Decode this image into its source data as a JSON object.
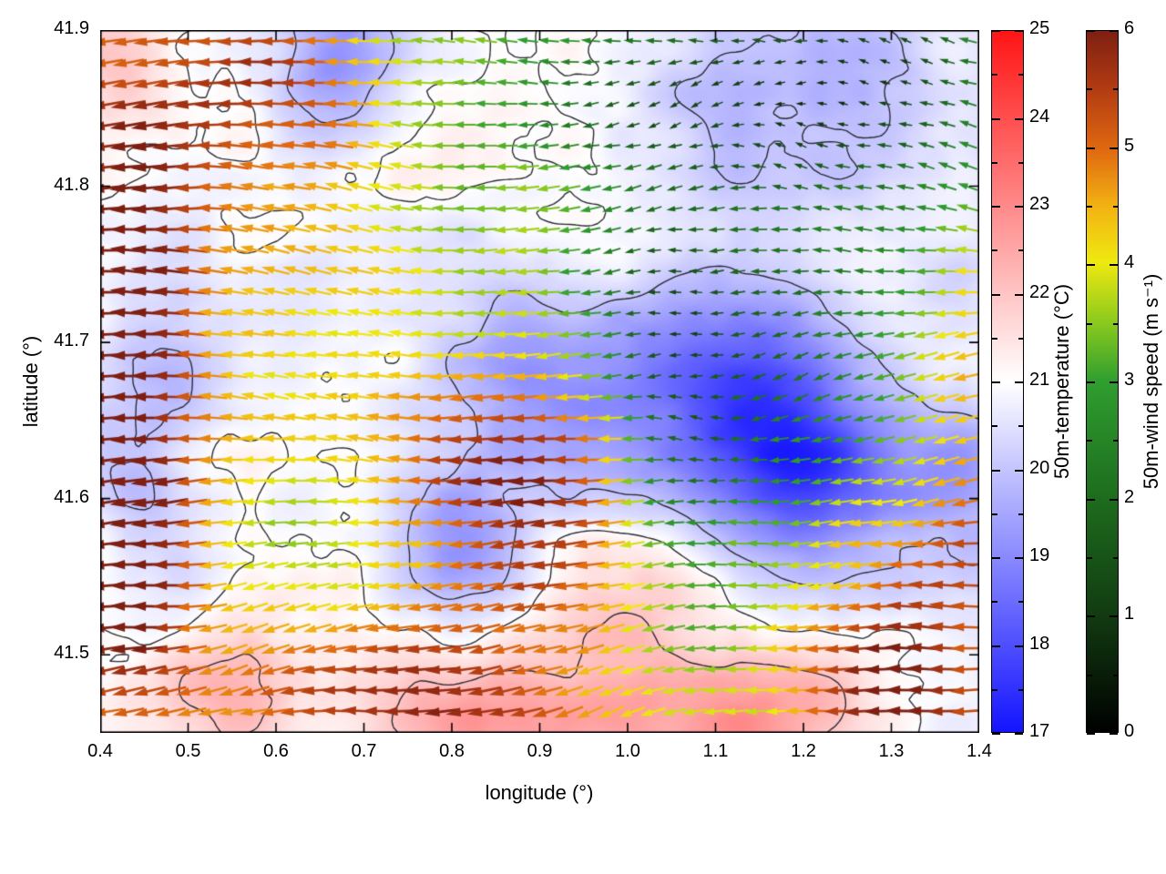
{
  "chart_data": {
    "type": "heatmap",
    "subtype": "2d-temperature-field-with-wind-vector-overlay",
    "title": "",
    "xlabel": "longitude (°)",
    "ylabel": "latitude (°)",
    "xlim": [
      0.4,
      1.4
    ],
    "ylim": [
      41.45,
      41.9
    ],
    "x_ticks": [
      "0.4",
      "0.5",
      "0.6",
      "0.7",
      "0.8",
      "0.9",
      "1.0",
      "1.1",
      "1.2",
      "1.3",
      "1.4"
    ],
    "y_ticks": [
      "41.5",
      "41.6",
      "41.7",
      "41.8",
      "41.9"
    ],
    "grid": false,
    "legend_position": "none",
    "colorbars": [
      {
        "id": "temperature",
        "label": "50m-temperature (°C)",
        "range": [
          17,
          25
        ],
        "ticks": [
          "17",
          "18",
          "19",
          "20",
          "21",
          "22",
          "23",
          "24",
          "25"
        ],
        "stops": [
          {
            "pos": 0.0,
            "color": "#1414ff"
          },
          {
            "pos": 0.5,
            "color": "#ffffff"
          },
          {
            "pos": 1.0,
            "color": "#ff1414"
          }
        ]
      },
      {
        "id": "wind-speed",
        "label": "50m-wind speed (m s⁻¹)",
        "range": [
          0,
          6
        ],
        "ticks": [
          "0",
          "1",
          "2",
          "3",
          "4",
          "5",
          "6"
        ],
        "stops": [
          {
            "pos": 0.0,
            "color": "#000000"
          },
          {
            "pos": 0.17,
            "color": "#123c12"
          },
          {
            "pos": 0.33,
            "color": "#1d6b1d"
          },
          {
            "pos": 0.5,
            "color": "#2f9e2f"
          },
          {
            "pos": 0.58,
            "color": "#86c81e"
          },
          {
            "pos": 0.67,
            "color": "#efe90f"
          },
          {
            "pos": 0.75,
            "color": "#f2b213"
          },
          {
            "pos": 0.83,
            "color": "#e06910"
          },
          {
            "pos": 0.92,
            "color": "#b03a12"
          },
          {
            "pos": 1.0,
            "color": "#7e1f12"
          }
        ]
      }
    ],
    "overlays": [
      {
        "name": "wind-vectors",
        "description": "dense grid of arrows colored by 50m wind speed, predominantly pointing west (leftward); dark-red fast flow on the west edge and along the southern rim, yellow/orange band through the centre, slow dark-green flow in the east and very weak flow in the north-east corner",
        "grid_spacing_px": 23
      },
      {
        "name": "contour-lines",
        "description": "dark meandering contour lines over the temperature field",
        "levels": [
          20,
          21,
          22
        ],
        "color": "#2b2b33"
      }
    ],
    "field_model": {
      "temperature": {
        "units": "°C",
        "base": 20.9,
        "noise_amp": 0.85,
        "blobs": [
          {
            "lon": 1.13,
            "lat": 41.66,
            "amp": -3.0,
            "sx": 0.1,
            "sy": 0.06
          },
          {
            "lon": 1.22,
            "lat": 41.61,
            "amp": -1.6,
            "sx": 0.08,
            "sy": 0.05
          },
          {
            "lon": 0.88,
            "lat": 41.67,
            "amp": -1.3,
            "sx": 0.08,
            "sy": 0.05
          },
          {
            "lon": 0.67,
            "lat": 41.88,
            "amp": -1.6,
            "sx": 0.05,
            "sy": 0.035
          },
          {
            "lon": 1.22,
            "lat": 41.87,
            "amp": -1.1,
            "sx": 0.14,
            "sy": 0.05
          },
          {
            "lon": 0.46,
            "lat": 41.62,
            "amp": -0.9,
            "sx": 0.055,
            "sy": 0.12
          },
          {
            "lon": 0.8,
            "lat": 41.57,
            "amp": -1.5,
            "sx": 0.06,
            "sy": 0.03
          },
          {
            "lon": 1.39,
            "lat": 41.63,
            "amp": -1.0,
            "sx": 0.05,
            "sy": 0.06
          },
          {
            "lon": 0.85,
            "lat": 41.455,
            "amp": 2.2,
            "sx": 0.12,
            "sy": 0.035
          },
          {
            "lon": 0.53,
            "lat": 41.48,
            "amp": 1.3,
            "sx": 0.08,
            "sy": 0.035
          },
          {
            "lon": 1.15,
            "lat": 41.46,
            "amp": 1.8,
            "sx": 0.09,
            "sy": 0.035
          },
          {
            "lon": 0.42,
            "lat": 41.87,
            "amp": 0.7,
            "sx": 0.05,
            "sy": 0.04
          },
          {
            "lon": 1.02,
            "lat": 41.52,
            "amp": 0.8,
            "sx": 0.06,
            "sy": 0.04
          }
        ]
      },
      "wind_speed": {
        "units": "m s⁻¹",
        "base": 3.6,
        "noise_amp": 0.9,
        "blobs": [
          {
            "lon": 0.42,
            "lat": 41.72,
            "amp": 2.6,
            "sx": 0.07,
            "sy": 0.14
          },
          {
            "lon": 0.43,
            "lat": 41.57,
            "amp": 1.8,
            "sx": 0.05,
            "sy": 0.06
          },
          {
            "lon": 0.6,
            "lat": 41.87,
            "amp": 1.9,
            "sx": 0.09,
            "sy": 0.04
          },
          {
            "lon": 0.72,
            "lat": 41.7,
            "amp": 0.9,
            "sx": 0.2,
            "sy": 0.09
          },
          {
            "lon": 0.9,
            "lat": 41.6,
            "amp": 2.2,
            "sx": 0.09,
            "sy": 0.05
          },
          {
            "lon": 0.78,
            "lat": 41.47,
            "amp": 2.4,
            "sx": 0.18,
            "sy": 0.04
          },
          {
            "lon": 1.3,
            "lat": 41.55,
            "amp": 1.7,
            "sx": 0.1,
            "sy": 0.05
          },
          {
            "lon": 1.32,
            "lat": 41.46,
            "amp": 1.9,
            "sx": 0.08,
            "sy": 0.04
          },
          {
            "lon": 1.15,
            "lat": 41.7,
            "amp": -1.3,
            "sx": 0.15,
            "sy": 0.1
          },
          {
            "lon": 1.25,
            "lat": 41.87,
            "amp": -2.7,
            "sx": 0.15,
            "sy": 0.05
          },
          {
            "lon": 0.97,
            "lat": 41.83,
            "amp": -1.1,
            "sx": 0.08,
            "sy": 0.05
          },
          {
            "lon": 1.05,
            "lat": 41.66,
            "amp": -1.2,
            "sx": 0.05,
            "sy": 0.1
          },
          {
            "lon": 1.39,
            "lat": 41.68,
            "amp": 1.0,
            "sx": 0.05,
            "sy": 0.08
          }
        ]
      },
      "wind_direction_deg_base": 180
    }
  }
}
